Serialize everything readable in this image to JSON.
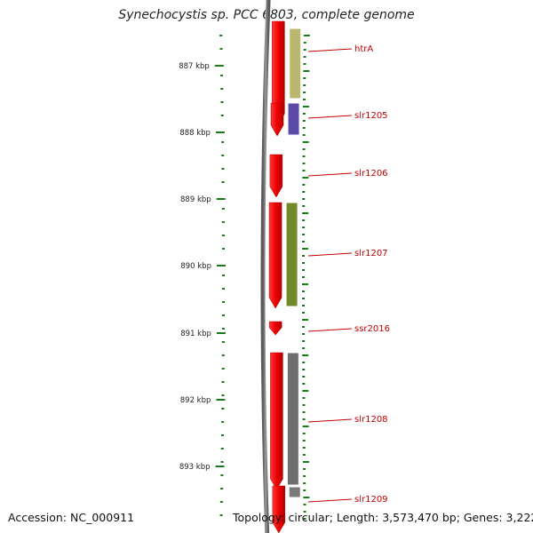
{
  "title": "Synechocystis sp. PCC 6803, complete genome",
  "footer": {
    "accession": "Accession: NC_000911",
    "summary": "Topology: circular; Length: 3,573,470 bp; Genes: 3,222"
  },
  "ruler": {
    "unit": "kbp",
    "labels": [
      "887 kbp",
      "888 kbp",
      "889 kbp",
      "890 kbp",
      "891 kbp",
      "892 kbp",
      "893 kbp"
    ]
  },
  "genes": [
    {
      "label": "htrA",
      "strand": "forward",
      "feature_color": "#bcb76e"
    },
    {
      "label": "slr1205",
      "strand": "forward",
      "feature_color": "#5c4aa8"
    },
    {
      "label": "slr1206",
      "strand": "forward",
      "feature_color": ""
    },
    {
      "label": "slr1207",
      "strand": "forward",
      "feature_color": "#6f8b2a"
    },
    {
      "label": "ssr2016",
      "strand": "forward",
      "feature_color": ""
    },
    {
      "label": "slr1208",
      "strand": "forward",
      "feature_color": "#6e6e6e"
    },
    {
      "label": "slr1209",
      "strand": "forward",
      "feature_color": "#7a7a7a"
    }
  ],
  "colors": {
    "cds": "#ee0000",
    "backbone": "#777777",
    "ruler": "#1a7a1a",
    "label": "#c00000"
  }
}
